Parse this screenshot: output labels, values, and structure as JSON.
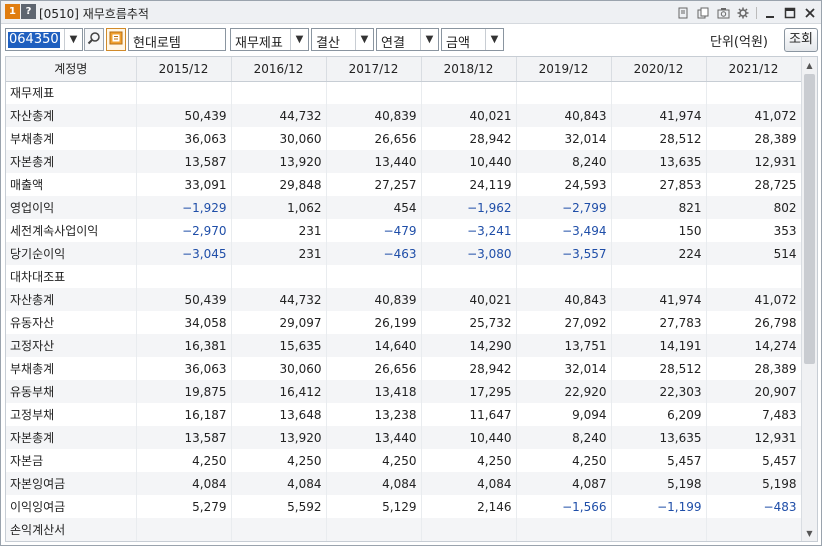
{
  "window": {
    "title": "[0510] 재무흐름추적",
    "badge_one": "1",
    "badge_help": "?",
    "icons": [
      "pin-icon",
      "copy-icon",
      "camera-icon",
      "settings-gear-icon",
      "minimize-icon",
      "maximize-icon",
      "close-icon"
    ]
  },
  "toolbar": {
    "code": "064350",
    "company_name": "현대로템",
    "report_type": "재무제표",
    "period_type": "결산",
    "consolidation": "연결",
    "value_type": "금액",
    "unit_label": "단위(억원)",
    "query_button": "조회"
  },
  "grid": {
    "header_label": "계정명",
    "years": [
      "2015/12",
      "2016/12",
      "2017/12",
      "2018/12",
      "2019/12",
      "2020/12",
      "2021/12"
    ],
    "rows": [
      {
        "label": "재무제표",
        "section": true,
        "values": []
      },
      {
        "label": "자산총계",
        "values": [
          "50,439",
          "44,732",
          "40,839",
          "40,021",
          "40,843",
          "41,974",
          "41,072"
        ]
      },
      {
        "label": "부채총계",
        "values": [
          "36,063",
          "30,060",
          "26,656",
          "28,942",
          "32,014",
          "28,512",
          "28,389"
        ]
      },
      {
        "label": "자본총계",
        "values": [
          "13,587",
          "13,920",
          "13,440",
          "10,440",
          "8,240",
          "13,635",
          "12,931"
        ]
      },
      {
        "label": "매출액",
        "values": [
          "33,091",
          "29,848",
          "27,257",
          "24,119",
          "24,593",
          "27,853",
          "28,725"
        ]
      },
      {
        "label": "영업이익",
        "values": [
          "−1,929",
          "1,062",
          "454",
          "−1,962",
          "−2,799",
          "821",
          "802"
        ]
      },
      {
        "label": "세전계속사업이익",
        "values": [
          "−2,970",
          "231",
          "−479",
          "−3,241",
          "−3,494",
          "150",
          "353"
        ]
      },
      {
        "label": "당기순이익",
        "values": [
          "−3,045",
          "231",
          "−463",
          "−3,080",
          "−3,557",
          "224",
          "514"
        ]
      },
      {
        "label": "대차대조표",
        "section": true,
        "values": []
      },
      {
        "label": "자산총계",
        "values": [
          "50,439",
          "44,732",
          "40,839",
          "40,021",
          "40,843",
          "41,974",
          "41,072"
        ]
      },
      {
        "label": "유동자산",
        "values": [
          "34,058",
          "29,097",
          "26,199",
          "25,732",
          "27,092",
          "27,783",
          "26,798"
        ]
      },
      {
        "label": "고정자산",
        "values": [
          "16,381",
          "15,635",
          "14,640",
          "14,290",
          "13,751",
          "14,191",
          "14,274"
        ]
      },
      {
        "label": "부채총계",
        "values": [
          "36,063",
          "30,060",
          "26,656",
          "28,942",
          "32,014",
          "28,512",
          "28,389"
        ]
      },
      {
        "label": "유동부채",
        "values": [
          "19,875",
          "16,412",
          "13,418",
          "17,295",
          "22,920",
          "22,303",
          "20,907"
        ]
      },
      {
        "label": "고정부채",
        "values": [
          "16,187",
          "13,648",
          "13,238",
          "11,647",
          "9,094",
          "6,209",
          "7,483"
        ]
      },
      {
        "label": "자본총계",
        "values": [
          "13,587",
          "13,920",
          "13,440",
          "10,440",
          "8,240",
          "13,635",
          "12,931"
        ]
      },
      {
        "label": "자본금",
        "values": [
          "4,250",
          "4,250",
          "4,250",
          "4,250",
          "4,250",
          "5,457",
          "5,457"
        ]
      },
      {
        "label": "자본잉여금",
        "values": [
          "4,084",
          "4,084",
          "4,084",
          "4,084",
          "4,087",
          "5,198",
          "5,198"
        ]
      },
      {
        "label": "이익잉여금",
        "values": [
          "5,279",
          "5,592",
          "5,129",
          "2,146",
          "−1,566",
          "−1,199",
          "−483"
        ]
      },
      {
        "label": "손익계산서",
        "section": true,
        "values": []
      }
    ]
  },
  "colors": {
    "negative": "#1f4ea8",
    "selection": "#1f5fbf",
    "badge_orange": "#e07d10"
  }
}
